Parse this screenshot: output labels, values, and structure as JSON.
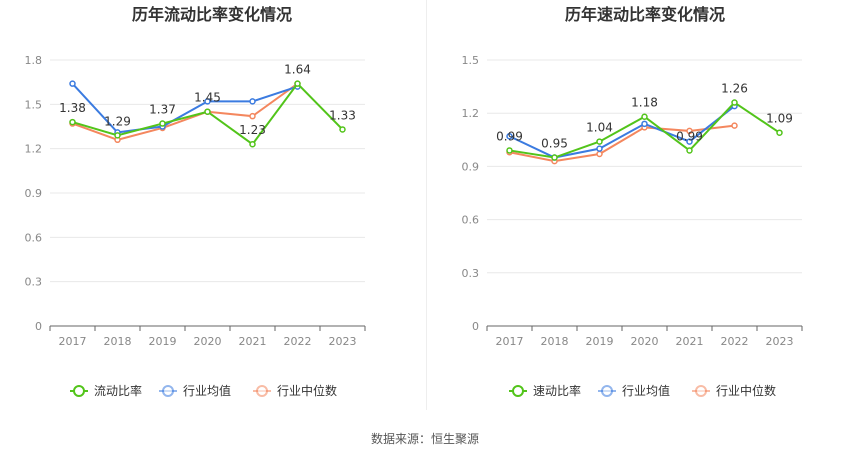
{
  "source": "数据来源：恒生聚源",
  "colors": {
    "main": "#52c41a",
    "avg": "#3b7be0",
    "median": "#f4875e",
    "grid": "#e8e8e8",
    "axis": "#888888",
    "label": "#333333",
    "title": "#333333"
  },
  "chart_data": [
    {
      "type": "line",
      "title": "历年流动比率变化情况",
      "categories": [
        "2017",
        "2018",
        "2019",
        "2020",
        "2021",
        "2022",
        "2023"
      ],
      "ylim": [
        0,
        1.8
      ],
      "yticks": [
        "0",
        "0.3",
        "0.6",
        "0.9",
        "1.2",
        "1.5",
        "1.8"
      ],
      "series": [
        {
          "name": "流动比率",
          "role": "main",
          "values": [
            1.38,
            1.29,
            1.37,
            1.45,
            1.23,
            1.64,
            1.33
          ],
          "labels": [
            "1.38",
            "1.29",
            "1.37",
            "1.45",
            "1.23",
            "1.64",
            "1.33"
          ]
        },
        {
          "name": "行业均值",
          "role": "avg",
          "values": [
            1.64,
            1.31,
            1.35,
            1.52,
            1.52,
            1.62,
            null
          ]
        },
        {
          "name": "行业中位数",
          "role": "median",
          "values": [
            1.37,
            1.26,
            1.34,
            1.45,
            1.42,
            1.64,
            null
          ]
        }
      ]
    },
    {
      "type": "line",
      "title": "历年速动比率变化情况",
      "categories": [
        "2017",
        "2018",
        "2019",
        "2020",
        "2021",
        "2022",
        "2023"
      ],
      "ylim": [
        0,
        1.5
      ],
      "yticks": [
        "0",
        "0.3",
        "0.6",
        "0.9",
        "1.2",
        "1.5"
      ],
      "series": [
        {
          "name": "速动比率",
          "role": "main",
          "values": [
            0.99,
            0.95,
            1.04,
            1.18,
            0.99,
            1.26,
            1.09
          ],
          "labels": [
            "0.99",
            "0.95",
            "1.04",
            "1.18",
            "0.99",
            "1.26",
            "1.09"
          ]
        },
        {
          "name": "行业均值",
          "role": "avg",
          "values": [
            1.07,
            0.95,
            1.0,
            1.14,
            1.04,
            1.24,
            null
          ]
        },
        {
          "name": "行业中位数",
          "role": "median",
          "values": [
            0.98,
            0.93,
            0.97,
            1.12,
            1.1,
            1.13,
            null
          ]
        }
      ]
    }
  ]
}
